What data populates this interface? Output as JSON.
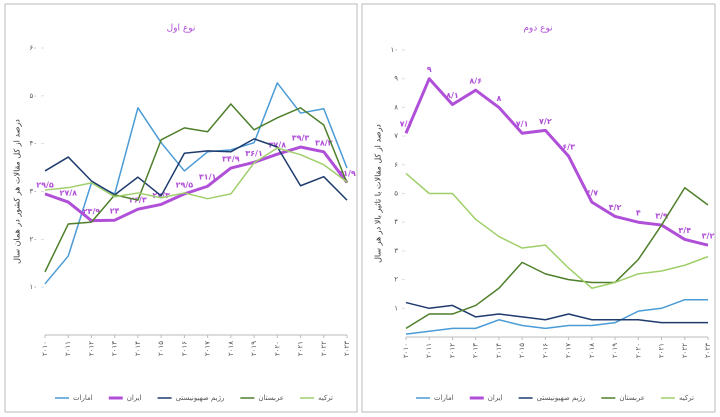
{
  "chart_data": [
    {
      "type": "line",
      "title": "نوع اول",
      "ylabel": "درصد از کل مقالات هر کشور در همان سال",
      "categories": [
        "۲۰۱۰",
        "۲۰۱۱",
        "۲۰۱۲",
        "۲۰۱۳",
        "۲۰۱۴",
        "۲۰۱۵",
        "۲۰۱۶",
        "۲۰۱۷",
        "۲۰۱۸",
        "۲۰۱۹",
        "۲۰۲۰",
        "۲۰۲۱",
        "۲۰۲۲",
        "۲۰۲۳"
      ],
      "ylim": [
        0,
        60
      ],
      "yticks": [
        {
          "value": 10,
          "label": "۱۰"
        },
        {
          "value": 20,
          "label": "۲۰"
        },
        {
          "value": 30,
          "label": "۳۰"
        },
        {
          "value": 40,
          "label": "۴۰"
        },
        {
          "value": 50,
          "label": "۵۰"
        },
        {
          "value": 60,
          "label": "۶۰"
        }
      ],
      "series": [
        {
          "name": "امارات",
          "color": "#4a9bd6",
          "values": [
            10.7,
            16.5,
            31.8,
            29.5,
            47.5,
            40.2,
            34.3,
            38.3,
            38.7,
            40.2,
            52.7,
            46.4,
            47.3,
            34.9
          ]
        },
        {
          "name": "ایران",
          "color": "#b04fd8",
          "values": [
            29.5,
            27.8,
            23.9,
            24,
            26.3,
            27.3,
            29.5,
            31.1,
            34.9,
            36.1,
            37.8,
            39.3,
            38.3,
            31.9
          ],
          "value_labels": [
            "۲۹/۵",
            "۲۷/۸",
            "۲۳/۹",
            "۲۴",
            "۲۶/۳",
            "۲۷/۳",
            "۲۹/۵",
            "۳۱/۱",
            "۳۴/۹",
            "۳۶/۱",
            "۳۷/۸",
            "۳۹/۳",
            "۳۸/۳",
            "۳۱/۹"
          ]
        },
        {
          "name": "رژیم صهیونیستی",
          "color": "#1f3b6e",
          "values": [
            34.3,
            37.2,
            32.2,
            29.3,
            33,
            29.1,
            38,
            38.5,
            38.3,
            41,
            39.3,
            31.2,
            33.1,
            28.2
          ]
        },
        {
          "name": "عربستان",
          "color": "#4e7f2a",
          "values": [
            13.2,
            23.2,
            23.6,
            29.3,
            28.2,
            40.8,
            43.3,
            42.5,
            48.3,
            42.9,
            45.4,
            47.5,
            43.9,
            31.8
          ]
        },
        {
          "name": "ترکیه",
          "color": "#9fcf6a",
          "values": [
            30.3,
            30.8,
            31.8,
            28.9,
            29.7,
            28.7,
            29.7,
            28.5,
            29.5,
            36,
            39.1,
            37.7,
            35.6,
            32
          ]
        }
      ]
    },
    {
      "type": "line",
      "title": "نوع دوم",
      "ylabel": "درصد از کل مقالات با تاثیر بالا در هر سال",
      "categories": [
        "۲۰۱۰",
        "۲۰۱۱",
        "۲۰۱۲",
        "۲۰۱۳",
        "۲۰۱۴",
        "۲۰۱۵",
        "۲۰۱۶",
        "۲۰۱۷",
        "۲۰۱۸",
        "۲۰۱۹",
        "۲۰۲۰",
        "۲۰۲۱",
        "۲۰۲۲",
        "۲۰۲۳"
      ],
      "ylim": [
        0,
        10
      ],
      "yticks": [
        {
          "value": 1,
          "label": "۱"
        },
        {
          "value": 2,
          "label": "۲"
        },
        {
          "value": 3,
          "label": "۳"
        },
        {
          "value": 4,
          "label": "۴"
        },
        {
          "value": 5,
          "label": "۵"
        },
        {
          "value": 6,
          "label": "۶"
        },
        {
          "value": 7,
          "label": "۷"
        },
        {
          "value": 8,
          "label": "۸"
        },
        {
          "value": 9,
          "label": "۹"
        },
        {
          "value": 10,
          "label": "۱۰"
        }
      ],
      "series": [
        {
          "name": "امارات",
          "color": "#4a9bd6",
          "values": [
            0.1,
            0.2,
            0.3,
            0.3,
            0.6,
            0.4,
            0.3,
            0.4,
            0.4,
            0.5,
            0.9,
            1.0,
            1.3,
            1.3
          ]
        },
        {
          "name": "ایران",
          "color": "#b04fd8",
          "values": [
            7.1,
            9,
            8.1,
            8.6,
            8,
            7.1,
            7.2,
            6.3,
            4.7,
            4.2,
            4,
            3.9,
            3.4,
            3.2
          ],
          "value_labels": [
            "۷/۱",
            "۹",
            "۸/۱",
            "۸/۶",
            "۸",
            "۷/۱",
            "۷/۲",
            "۶/۳",
            "۴/۷",
            "۴/۲",
            "۴",
            "۳/۹",
            "۳/۴",
            "۳/۲"
          ]
        },
        {
          "name": "رژیم صهیونیستی",
          "color": "#1f3b6e",
          "values": [
            1.2,
            1.0,
            1.1,
            0.7,
            0.8,
            0.7,
            0.6,
            0.8,
            0.6,
            0.6,
            0.6,
            0.5,
            0.5,
            0.5
          ]
        },
        {
          "name": "عربستان",
          "color": "#4e7f2a",
          "values": [
            0.3,
            0.8,
            0.8,
            1.1,
            1.7,
            2.6,
            2.2,
            2.0,
            1.9,
            1.9,
            2.7,
            3.9,
            5.2,
            4.6
          ]
        },
        {
          "name": "ترکیه",
          "color": "#9fcf6a",
          "values": [
            5.7,
            5,
            5,
            4.1,
            3.5,
            3.1,
            3.2,
            2.4,
            1.7,
            1.9,
            2.2,
            2.3,
            2.5,
            2.8
          ]
        }
      ]
    }
  ]
}
